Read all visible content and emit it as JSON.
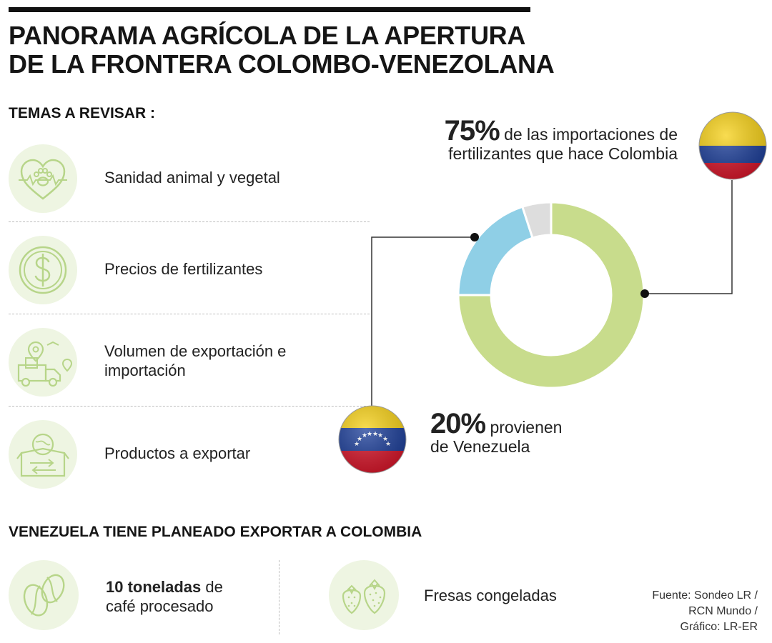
{
  "title": {
    "line1": "PANORAMA AGRÍCOLA DE LA APERTURA",
    "line2": "DE LA FRONTERA COLOMBO-VENEZOLANA"
  },
  "topics": {
    "heading": "TEMAS A REVISAR :",
    "items": [
      {
        "label": "Sanidad animal y vegetal",
        "icon": "paw-heart-icon"
      },
      {
        "label": "Precios de fertilizantes",
        "icon": "dollar-coin-icon"
      },
      {
        "label": "Volumen de exportación e importación",
        "icon": "delivery-truck-icon"
      },
      {
        "label": "Productos a exportar",
        "icon": "export-box-icon"
      }
    ]
  },
  "callouts": {
    "top": {
      "value": "75%",
      "text_line1": "de las importaciones de",
      "text_line2": "fertilizantes que hace Colombia"
    },
    "bottom": {
      "value": "20%",
      "text_line1": "provienen",
      "text_line2": "de Venezuela"
    }
  },
  "chart_data": {
    "type": "pie",
    "donut": true,
    "slices": [
      {
        "label": "Colombia importaciones de fertilizantes (otros orígenes)",
        "value": 75,
        "color": "#c8dc8c"
      },
      {
        "label": "Venezuela",
        "value": 20,
        "color": "#8fcfe6"
      },
      {
        "label": "",
        "value": 5,
        "color": "#dddddd"
      }
    ]
  },
  "exports": {
    "heading": "VENEZUELA TIENE PLANEADO EXPORTAR A COLOMBIA",
    "coffee": {
      "bold": "10 toneladas",
      "rest1": " de",
      "line2": "café procesado",
      "icon": "coffee-beans-icon"
    },
    "strawberries": {
      "label": "Fresas congeladas",
      "icon": "strawberries-icon"
    }
  },
  "source": {
    "line1": "Fuente: Sondeo LR /",
    "line2": "RCN Mundo /",
    "line3": "Gráfico: LR-ER"
  },
  "colors": {
    "icon_bg": "#eef5e2",
    "icon_stroke": "#b7d589",
    "colombia_yellow": "#f7d117",
    "colombia_blue": "#1d3f9a",
    "colombia_red": "#d7162a",
    "venezuela_yellow": "#f7d117",
    "venezuela_blue": "#1d3f9a",
    "venezuela_red": "#d7162a"
  }
}
